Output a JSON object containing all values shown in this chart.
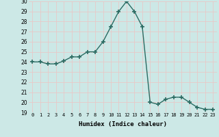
{
  "x": [
    0,
    1,
    2,
    3,
    4,
    5,
    6,
    7,
    8,
    9,
    10,
    11,
    12,
    13,
    14,
    15,
    16,
    17,
    18,
    19,
    20,
    21,
    22,
    23
  ],
  "y": [
    24.0,
    24.0,
    23.8,
    23.8,
    24.1,
    24.5,
    24.5,
    25.0,
    25.0,
    26.0,
    27.5,
    29.0,
    30.0,
    29.0,
    27.5,
    20.0,
    19.8,
    20.3,
    20.5,
    20.5,
    20.0,
    19.5,
    19.3,
    19.3
  ],
  "xlabel": "Humidex (Indice chaleur)",
  "ylim": [
    19,
    30
  ],
  "xlim": [
    -0.5,
    23.5
  ],
  "yticks": [
    19,
    20,
    21,
    22,
    23,
    24,
    25,
    26,
    27,
    28,
    29,
    30
  ],
  "xticks": [
    0,
    1,
    2,
    3,
    4,
    5,
    6,
    7,
    8,
    9,
    10,
    11,
    12,
    13,
    14,
    15,
    16,
    17,
    18,
    19,
    20,
    21,
    22,
    23
  ],
  "xtick_labels": [
    "0",
    "1",
    "2",
    "3",
    "4",
    "5",
    "6",
    "7",
    "8",
    "9",
    "10",
    "11",
    "12",
    "13",
    "14",
    "15",
    "16",
    "17",
    "18",
    "19",
    "20",
    "21",
    "22",
    "23"
  ],
  "line_color": "#2a6b62",
  "marker": "+",
  "marker_size": 4,
  "marker_lw": 1.2,
  "bg_color": "#cce8e6",
  "grid_color": "#e8c8c8",
  "fig_bg": "#cce8e6",
  "xlabel_fontsize": 6.5,
  "xlabel_bold": true,
  "ytick_fontsize": 5.5,
  "xtick_fontsize": 5.0
}
